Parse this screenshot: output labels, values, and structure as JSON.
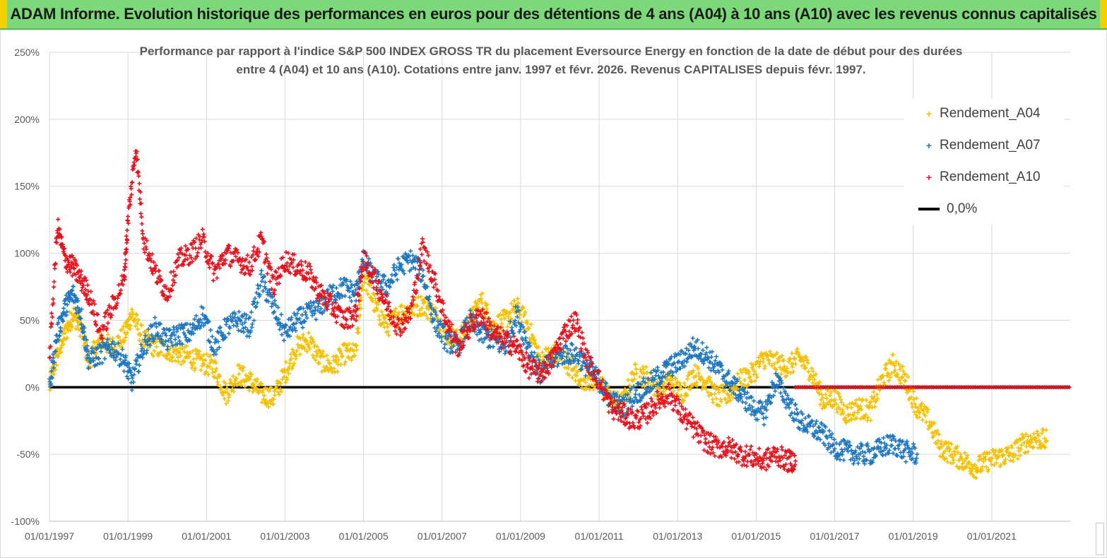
{
  "banner": {
    "title": "ADAM Informe. Evolution historique des performances en euros pour des détentions de 4 ans (A04) à 10 ans (A10) avec les revenus connus capitalisés"
  },
  "colors": {
    "banner_bg": "#7dd87a",
    "a04": "#f5c000",
    "a07": "#1f77c0",
    "a10": "#e8111c",
    "zero_line": "#000000"
  },
  "chart_data": {
    "type": "scatter",
    "title_lines": [
      "Performance par rapport à l'indice S&P 500 INDEX GROSS TR  du placement Eversource Energy en fonction de la date de début pour des durées",
      "entre 4 (A04) et 10 ans (A10). Cotations entre janv. 1997 et févr. 2026. Revenus CAPITALISES depuis févr. 1997."
    ],
    "y_ticks": [
      "250%",
      "200%",
      "150%",
      "100%",
      "50%",
      "0%",
      "-50%",
      "-100%"
    ],
    "y_tick_values": [
      250,
      200,
      150,
      100,
      50,
      0,
      -50,
      -100
    ],
    "ylim": [
      -100,
      250
    ],
    "x_ticks": [
      "01/01/1997",
      "01/01/1999",
      "01/01/2001",
      "01/01/2003",
      "01/01/2005",
      "01/01/2007",
      "01/01/2009",
      "01/01/2011",
      "01/01/2013",
      "01/01/2015",
      "01/01/2017",
      "01/01/2019",
      "01/01/2021"
    ],
    "x_tick_years": [
      1997,
      1999,
      2001,
      2003,
      2005,
      2007,
      2009,
      2011,
      2013,
      2015,
      2017,
      2019,
      2021
    ],
    "xlim": [
      1997.0,
      2023.0
    ],
    "grid": "both",
    "legend_position": "top-right",
    "marker": "+",
    "series": [
      {
        "name": "Rendement_A04",
        "color": "#f5c000",
        "x": [
          1997.0,
          1997.2,
          1997.4,
          1997.6,
          1997.8,
          1998.0,
          1998.3,
          1998.6,
          1998.9,
          1999.1,
          1999.4,
          1999.7,
          2000.0,
          2000.3,
          2000.6,
          2000.9,
          2001.2,
          2001.5,
          2001.8,
          2002.1,
          2002.4,
          2002.7,
          2003.0,
          2003.3,
          2003.6,
          2003.9,
          2004.2,
          2004.5,
          2004.8,
          2005.0,
          2005.3,
          2005.6,
          2005.9,
          2006.2,
          2006.5,
          2006.8,
          2007.1,
          2007.4,
          2007.7,
          2008.0,
          2008.3,
          2008.6,
          2008.9,
          2009.2,
          2009.5,
          2009.8,
          2010.1,
          2010.4,
          2010.7,
          2011.0,
          2011.3,
          2011.6,
          2011.9,
          2012.2,
          2012.5,
          2012.8,
          2013.1,
          2013.4,
          2013.7,
          2014.0,
          2014.3,
          2014.6,
          2014.9,
          2015.2,
          2015.5,
          2015.8,
          2016.1,
          2016.4,
          2016.7,
          2017.0,
          2017.3,
          2017.6,
          2017.9,
          2018.2,
          2018.5,
          2018.8,
          2019.1,
          2019.4,
          2019.7,
          2020.0,
          2020.3,
          2020.6,
          2020.9,
          2021.2,
          2021.5,
          2021.8,
          2022.1,
          2022.4
        ],
        "y": [
          0,
          25,
          40,
          55,
          45,
          20,
          35,
          30,
          38,
          55,
          35,
          30,
          28,
          25,
          22,
          18,
          15,
          -5,
          10,
          5,
          -5,
          -8,
          10,
          30,
          35,
          20,
          15,
          25,
          25,
          85,
          60,
          45,
          55,
          58,
          62,
          55,
          40,
          35,
          48,
          65,
          45,
          50,
          60,
          45,
          20,
          25,
          22,
          10,
          5,
          5,
          -10,
          -12,
          10,
          8,
          -3,
          5,
          -5,
          10,
          5,
          -8,
          -5,
          5,
          10,
          22,
          18,
          15,
          22,
          12,
          -10,
          -8,
          -20,
          -15,
          -18,
          5,
          18,
          5,
          -15,
          -25,
          -45,
          -50,
          -55,
          -60,
          -55,
          -52,
          -50,
          -42,
          -38,
          -40
        ]
      },
      {
        "name": "Rendement_A07",
        "color": "#1f77c0",
        "x": [
          1997.0,
          1997.2,
          1997.4,
          1997.6,
          1997.8,
          1998.0,
          1998.3,
          1998.6,
          1998.9,
          1999.1,
          1999.4,
          1999.7,
          2000.0,
          2000.3,
          2000.6,
          2000.9,
          2001.2,
          2001.5,
          2001.8,
          2002.1,
          2002.4,
          2002.7,
          2003.0,
          2003.3,
          2003.6,
          2003.9,
          2004.2,
          2004.5,
          2004.8,
          2005.0,
          2005.3,
          2005.6,
          2005.9,
          2006.2,
          2006.5,
          2006.8,
          2007.1,
          2007.4,
          2007.7,
          2008.0,
          2008.3,
          2008.6,
          2008.9,
          2009.2,
          2009.5,
          2009.8,
          2010.1,
          2010.4,
          2010.7,
          2011.0,
          2011.3,
          2011.6,
          2011.9,
          2012.2,
          2012.5,
          2012.8,
          2013.1,
          2013.4,
          2013.7,
          2014.0,
          2014.3,
          2014.6,
          2014.9,
          2015.2,
          2015.5,
          2015.8,
          2016.1,
          2016.4,
          2016.7,
          2017.0,
          2017.3,
          2017.6,
          2017.9,
          2018.2,
          2018.5,
          2018.8,
          2019.1
        ],
        "y": [
          0,
          40,
          60,
          70,
          55,
          20,
          25,
          30,
          20,
          5,
          30,
          45,
          35,
          40,
          40,
          55,
          30,
          45,
          50,
          45,
          80,
          60,
          40,
          50,
          55,
          60,
          70,
          75,
          70,
          95,
          80,
          75,
          90,
          95,
          85,
          50,
          35,
          30,
          50,
          40,
          35,
          30,
          55,
          30,
          10,
          20,
          25,
          25,
          15,
          5,
          -10,
          -15,
          -5,
          0,
          8,
          15,
          20,
          30,
          25,
          15,
          5,
          -5,
          -15,
          -20,
          5,
          -10,
          -25,
          -30,
          -35,
          -45,
          -48,
          -50,
          -50,
          -45,
          -42,
          -48,
          -50
        ]
      },
      {
        "name": "Rendement_A10",
        "color": "#e8111c",
        "x": [
          1997.0,
          1997.2,
          1997.4,
          1997.6,
          1997.8,
          1998.0,
          1998.3,
          1998.6,
          1998.9,
          1999.0,
          1999.2,
          1999.4,
          1999.7,
          2000.0,
          2000.3,
          2000.6,
          2000.9,
          2001.2,
          2001.5,
          2001.8,
          2002.1,
          2002.4,
          2002.7,
          2003.0,
          2003.3,
          2003.6,
          2003.9,
          2004.2,
          2004.5,
          2004.8,
          2005.0,
          2005.3,
          2005.6,
          2005.9,
          2006.2,
          2006.5,
          2006.8,
          2007.1,
          2007.4,
          2007.7,
          2008.0,
          2008.3,
          2008.6,
          2008.9,
          2009.2,
          2009.5,
          2009.8,
          2010.1,
          2010.4,
          2010.7,
          2011.0,
          2011.3,
          2011.6,
          2011.9,
          2012.2,
          2012.5,
          2012.8,
          2013.1,
          2013.4,
          2013.7,
          2014.0,
          2014.3,
          2014.6,
          2014.9,
          2015.2,
          2015.5,
          2015.8,
          2016.0
        ],
        "y": [
          20,
          120,
          95,
          90,
          80,
          70,
          40,
          60,
          80,
          125,
          180,
          110,
          85,
          70,
          95,
          100,
          110,
          85,
          100,
          95,
          90,
          110,
          75,
          95,
          90,
          85,
          70,
          60,
          50,
          55,
          95,
          80,
          60,
          45,
          55,
          105,
          80,
          50,
          30,
          45,
          55,
          40,
          35,
          30,
          15,
          10,
          20,
          40,
          50,
          20,
          5,
          -15,
          -20,
          -25,
          -20,
          -10,
          -5,
          -20,
          -30,
          -40,
          -45,
          -45,
          -50,
          -52,
          -55,
          -50,
          -55,
          -55
        ]
      },
      {
        "name": "0,0%",
        "color": "#000000",
        "x": [
          1997.0,
          2023.0
        ],
        "y": [
          0,
          0
        ]
      }
    ],
    "a10_zero_x": [
      2016.0,
      2023.0
    ],
    "legend": [
      {
        "label": "Rendement_A04",
        "kind": "marker",
        "color": "#f5c000"
      },
      {
        "label": "Rendement_A07",
        "kind": "marker",
        "color": "#1f77c0"
      },
      {
        "label": "Rendement_A10",
        "kind": "marker",
        "color": "#e8111c"
      },
      {
        "label": "0,0%",
        "kind": "line",
        "color": "#000000"
      }
    ]
  }
}
